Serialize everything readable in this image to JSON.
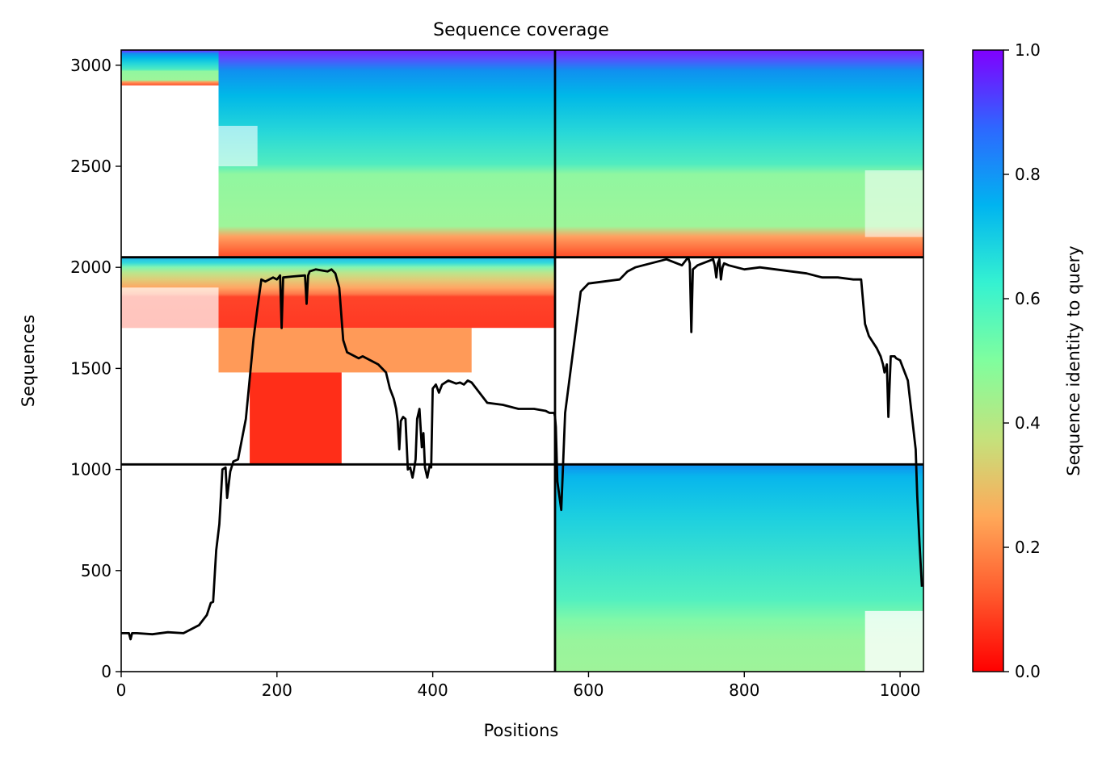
{
  "chart_data": {
    "type": "heatmap",
    "title": "Sequence coverage",
    "xlabel": "Positions",
    "ylabel": "Sequences",
    "xlim": [
      0,
      1030
    ],
    "ylim": [
      0,
      3075
    ],
    "xticks": [
      0,
      200,
      400,
      600,
      800,
      1000
    ],
    "yticks": [
      0,
      500,
      1000,
      1500,
      2000,
      2500,
      3000
    ],
    "colorbar": {
      "label": "Sequence identity to query",
      "range": [
        0.0,
        1.0
      ],
      "ticks": [
        "0.0",
        "0.2",
        "0.4",
        "0.6",
        "0.8",
        "1.0"
      ],
      "colormap": "rainbow_r"
    },
    "chain_boundaries": {
      "vertical_x": [
        557
      ],
      "horizontal_y": [
        1025,
        2050
      ]
    },
    "blocks": [
      {
        "region": "chain A x chain A+B paired",
        "x": [
          0,
          557
        ],
        "y": [
          2050,
          3075
        ],
        "note": "dense coverage from ~125, sparse N-terminus"
      },
      {
        "region": "chain B x chain A+B paired",
        "x": [
          557,
          1030
        ],
        "y": [
          2050,
          3075
        ]
      },
      {
        "region": "chain A unpaired",
        "x": [
          0,
          557
        ],
        "y": [
          1025,
          2050
        ]
      },
      {
        "region": "chain B unpaired",
        "x": [
          557,
          1030
        ],
        "y": [
          0,
          1025
        ]
      }
    ],
    "coverage_line": {
      "name": "coverage",
      "x": [
        0,
        10,
        12,
        14,
        20,
        40,
        60,
        80,
        90,
        100,
        110,
        115,
        118,
        122,
        126,
        130,
        134,
        136,
        140,
        144,
        150,
        160,
        170,
        175,
        180,
        185,
        195,
        200,
        204,
        206,
        208,
        220,
        236,
        238,
        240,
        242,
        250,
        265,
        270,
        275,
        280,
        285,
        290,
        295,
        300,
        305,
        310,
        320,
        330,
        340,
        345,
        350,
        353,
        355,
        357,
        359,
        362,
        365,
        368,
        371,
        374,
        376,
        378,
        380,
        383,
        386,
        388,
        390,
        393,
        396,
        398,
        400,
        404,
        408,
        412,
        420,
        430,
        435,
        440,
        445,
        450,
        470,
        490,
        510,
        530,
        545,
        550,
        555,
        556,
        557,
        558,
        560,
        565,
        570,
        590,
        600,
        620,
        640,
        650,
        660,
        680,
        700,
        720,
        728,
        730,
        732,
        734,
        740,
        760,
        762,
        764,
        766,
        768,
        770,
        772,
        774,
        780,
        800,
        820,
        840,
        860,
        880,
        900,
        910,
        920,
        940,
        950,
        955,
        960,
        965,
        970,
        975,
        978,
        980,
        983,
        985,
        988,
        991,
        993,
        995,
        1000,
        1010,
        1020,
        1022,
        1025,
        1028,
        1030
      ],
      "y": [
        190,
        190,
        160,
        190,
        190,
        185,
        195,
        190,
        210,
        230,
        280,
        340,
        345,
        600,
        730,
        1000,
        1010,
        860,
        990,
        1040,
        1050,
        1250,
        1650,
        1800,
        1940,
        1930,
        1950,
        1940,
        1960,
        1700,
        1950,
        1955,
        1960,
        1820,
        1960,
        1980,
        1990,
        1980,
        1990,
        1970,
        1900,
        1640,
        1580,
        1570,
        1560,
        1550,
        1560,
        1540,
        1520,
        1480,
        1400,
        1350,
        1300,
        1240,
        1100,
        1240,
        1260,
        1250,
        1000,
        1010,
        960,
        1000,
        1050,
        1250,
        1300,
        1110,
        1180,
        1010,
        960,
        1020,
        1010,
        1400,
        1420,
        1380,
        1420,
        1440,
        1425,
        1430,
        1420,
        1440,
        1430,
        1330,
        1320,
        1300,
        1300,
        1290,
        1280,
        1280,
        1280,
        1260,
        1210,
        940,
        800,
        1280,
        1880,
        1920,
        1930,
        1940,
        1980,
        2000,
        2020,
        2040,
        2010,
        2050,
        2020,
        1680,
        1990,
        2010,
        2040,
        2010,
        1950,
        2020,
        2040,
        1940,
        2000,
        2020,
        2010,
        1990,
        2000,
        1990,
        1980,
        1970,
        1950,
        1950,
        1950,
        1940,
        1940,
        1720,
        1660,
        1630,
        1600,
        1560,
        1520,
        1480,
        1520,
        1260,
        1560,
        1560,
        1560,
        1550,
        1540,
        1440,
        1100,
        870,
        630,
        420
      ]
    }
  }
}
